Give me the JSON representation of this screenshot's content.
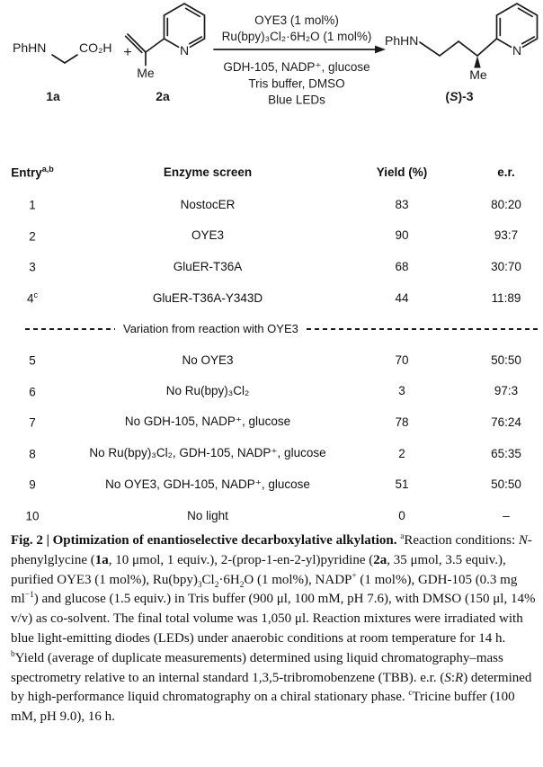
{
  "page": {
    "background": "#ffffff",
    "text_color": "#111111"
  },
  "scheme": {
    "reactant1": {
      "amine": "PhHN",
      "acid": "CO₂H",
      "tag": "1a"
    },
    "plus": "+",
    "reactant2": {
      "methyl": "Me",
      "nitrogen": "N",
      "tag": "2a"
    },
    "arrow_above": [
      "OYE3 (1 mol%)",
      "Ru(bpy)₃Cl₂·6H₂O (1 mol%)"
    ],
    "arrow_below": [
      "GDH-105, NADP⁺, glucose",
      "Tris buffer, DMSO",
      "Blue LEDs"
    ],
    "product": {
      "amine": "PhHN",
      "methyl": "Me",
      "nitrogen": "N",
      "tag_pre": "(",
      "tag_stereo": "S",
      "tag_post": ")-3"
    }
  },
  "table": {
    "header": {
      "entry": "Entry",
      "entry_sup": "a,b",
      "enzyme": "Enzyme screen",
      "yield": "Yield (%)",
      "er": "e.r."
    },
    "screen_rows": [
      {
        "entry": "1",
        "enzyme": "NostocER",
        "yield": "83",
        "er": "80:20"
      },
      {
        "entry": "2",
        "enzyme": "OYE3",
        "yield": "90",
        "er": "93:7"
      },
      {
        "entry": "3",
        "enzyme": "GluER-T36A",
        "yield": "68",
        "er": "30:70"
      },
      {
        "entry": "4",
        "entry_sup": "c",
        "enzyme": "GluER-T36A-Y343D",
        "yield": "44",
        "er": "11:89"
      }
    ],
    "divider_label": "Variation from reaction with OYE3",
    "variation_rows": [
      {
        "entry": "5",
        "enzyme": "No OYE3",
        "yield": "70",
        "er": "50:50"
      },
      {
        "entry": "6",
        "enzyme": "No Ru(bpy)₃Cl₂",
        "yield": "3",
        "er": "97:3"
      },
      {
        "entry": "7",
        "enzyme": "No GDH-105, NADP⁺, glucose",
        "yield": "78",
        "er": "76:24"
      },
      {
        "entry": "8",
        "enzyme": "No Ru(bpy)₃Cl₂, GDH-105, NADP⁺, glucose",
        "yield": "2",
        "er": "65:35"
      },
      {
        "entry": "9",
        "enzyme": "No OYE3, GDH-105, NADP⁺, glucose",
        "yield": "51",
        "er": "50:50"
      },
      {
        "entry": "10",
        "enzyme": "No light",
        "yield": "0",
        "er": "–"
      }
    ]
  },
  "caption": {
    "segments": [
      {
        "t": "Fig. 2 | Optimization of enantioselective decarboxylative alkylation. ",
        "b": true
      },
      {
        "t": "a",
        "sup": true
      },
      {
        "t": "Reaction conditions: "
      },
      {
        "t": "N",
        "i": true
      },
      {
        "t": "-phenylglycine ("
      },
      {
        "t": "1a",
        "b": true
      },
      {
        "t": ", 10 μmol, 1 equiv.), 2-(prop-1-en-2-yl)pyridine ("
      },
      {
        "t": "2a",
        "b": true
      },
      {
        "t": ", 35 μmol, 3.5 equiv.), purified OYE3 (1 mol%), Ru(bpy)"
      },
      {
        "t": "3",
        "sub": true
      },
      {
        "t": "Cl"
      },
      {
        "t": "2",
        "sub": true
      },
      {
        "t": "·6H"
      },
      {
        "t": "2",
        "sub": true
      },
      {
        "t": "O (1 mol%), NADP"
      },
      {
        "t": "+",
        "sup": true
      },
      {
        "t": " (1 mol%), GDH-105 (0.3 mg ml"
      },
      {
        "t": "−1",
        "sup": true
      },
      {
        "t": ") and glucose (1.5 equiv.) in Tris buffer (900 μl, 100 mM, pH 7.6), with DMSO (150 μl, 14% v/v) as co-solvent. The final total volume was 1,050 μl. Reaction mixtures were irradiated with blue light-emitting diodes (LEDs) under anaerobic conditions at room temperature for 14 h. "
      },
      {
        "t": "b",
        "sup": true
      },
      {
        "t": "Yield (average of duplicate measurements) determined using liquid chromatography–mass spectrometry relative to an internal standard 1,3,5-tribromobenzene (TBB). e.r. ("
      },
      {
        "t": "S",
        "i": true
      },
      {
        "t": ":"
      },
      {
        "t": "R",
        "i": true
      },
      {
        "t": ") determined by high-performance liquid chromatography on a chiral stationary phase. "
      },
      {
        "t": "c",
        "sup": true
      },
      {
        "t": "Tricine buffer (100 mM, pH 9.0), 16 h."
      }
    ]
  }
}
